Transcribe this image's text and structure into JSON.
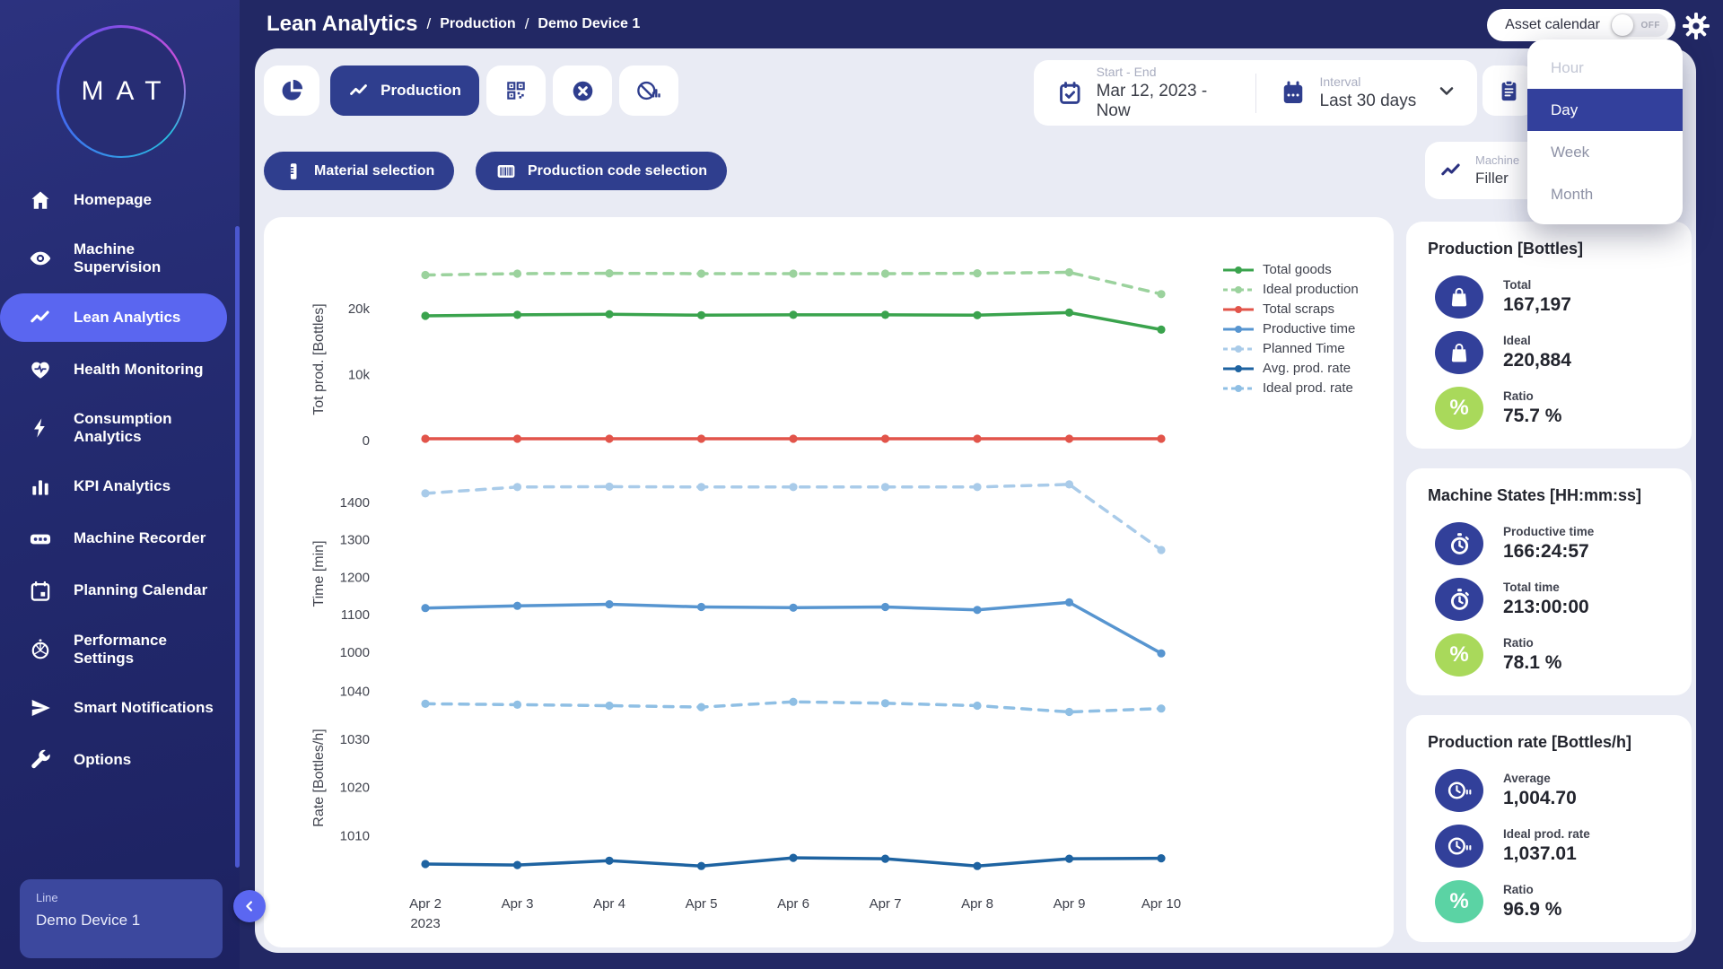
{
  "app": {
    "logo_text": "MAT",
    "breadcrumb": {
      "title": "Lean Analytics",
      "separator": "/",
      "items": [
        "Production",
        "Demo Device 1"
      ]
    }
  },
  "header": {
    "asset_calendar_label": "Asset calendar",
    "toggle_state": "OFF"
  },
  "interval_dropdown": {
    "options": [
      {
        "label": "Hour",
        "selected": false
      },
      {
        "label": "Day",
        "selected": true
      },
      {
        "label": "Week",
        "selected": false
      },
      {
        "label": "Month",
        "selected": false
      }
    ]
  },
  "sidebar": {
    "items": [
      {
        "label": "Homepage",
        "icon": "home",
        "active": false
      },
      {
        "label": "Machine Supervision",
        "icon": "eye",
        "active": false
      },
      {
        "label": "Lean Analytics",
        "icon": "line-chart",
        "active": true
      },
      {
        "label": "Health Monitoring",
        "icon": "heart",
        "active": false
      },
      {
        "label": "Consumption Analytics",
        "icon": "bolt",
        "active": false
      },
      {
        "label": "KPI Analytics",
        "icon": "bar-chart",
        "active": false
      },
      {
        "label": "Machine Recorder",
        "icon": "recorder",
        "active": false
      },
      {
        "label": "Planning Calendar",
        "icon": "calendar",
        "active": false
      },
      {
        "label": "Performance Settings",
        "icon": "gauge",
        "active": false
      },
      {
        "label": "Smart Notifications",
        "icon": "send",
        "active": false
      },
      {
        "label": "Options",
        "icon": "wrench",
        "active": false
      }
    ],
    "device_card": {
      "label": "Line",
      "value": "Demo Device 1"
    }
  },
  "toolbar": {
    "production_label": "Production",
    "material_label": "Material selection",
    "production_code_label": "Production code selection",
    "daterange": {
      "label": "Start - End",
      "value": "Mar 12, 2023 - Now"
    },
    "interval": {
      "label": "Interval",
      "value": "Last 30 days"
    }
  },
  "machine_chip": {
    "label": "Machine",
    "value": "Filler"
  },
  "colors": {
    "accent": "#5a66f0",
    "button_blue": "#2f3e8e",
    "stat_icon_blue": "#32409a",
    "ratio_lime": "#a9d95b",
    "ratio_mint": "#5bd3a4",
    "panel_bg": "#e9ebf4",
    "navy_bg": "#222864"
  },
  "stats_cards": [
    {
      "title": "Production [Bottles]",
      "rows": [
        {
          "icon": "bag",
          "label": "Total",
          "value": "167,197",
          "icon_bg": "#32409a"
        },
        {
          "icon": "bag",
          "label": "Ideal",
          "value": "220,884",
          "icon_bg": "#32409a"
        },
        {
          "icon": "percent",
          "label": "Ratio",
          "value": "75.7 %",
          "icon_bg": "#a9d95b"
        }
      ]
    },
    {
      "title": "Machine States [HH:mm:ss]",
      "rows": [
        {
          "icon": "stopwatch",
          "label": "Productive time",
          "value": "166:24:57",
          "icon_bg": "#32409a"
        },
        {
          "icon": "stopwatch",
          "label": "Total time",
          "value": "213:00:00",
          "icon_bg": "#32409a"
        },
        {
          "icon": "percent",
          "label": "Ratio",
          "value": "78.1 %",
          "icon_bg": "#a9d95b"
        }
      ]
    },
    {
      "title": "Production rate [Bottles/h]",
      "rows": [
        {
          "icon": "clock",
          "label": "Average",
          "value": "1,004.70",
          "icon_bg": "#32409a"
        },
        {
          "icon": "clock",
          "label": "Ideal prod. rate",
          "value": "1,037.01",
          "icon_bg": "#32409a"
        },
        {
          "icon": "percent",
          "label": "Ratio",
          "value": "96.9 %",
          "icon_bg": "#5bd3a4"
        }
      ]
    }
  ],
  "chart_data": {
    "type": "line",
    "x": [
      "Apr 2",
      "Apr 3",
      "Apr 4",
      "Apr 5",
      "Apr 6",
      "Apr 7",
      "Apr 8",
      "Apr 9",
      "Apr 10"
    ],
    "year_label": "2023",
    "grid": false,
    "legend_position": "right-top",
    "subplots": [
      {
        "ylabel": "Tot prod. [Bottles]",
        "ylim": [
          -2200,
          26800
        ],
        "ticks": {
          "values": [
            20000,
            10000,
            0
          ],
          "labels": [
            "20k",
            "10k",
            "0"
          ]
        },
        "series": [
          {
            "name": "Total goods",
            "color": "#3aa34d",
            "dash": false,
            "values": [
              18900,
              19050,
              19150,
              19000,
              19050,
              19050,
              19000,
              19400,
              16800
            ]
          },
          {
            "name": "Ideal production",
            "color": "#9bd29d",
            "dash": true,
            "values": [
              25100,
              25300,
              25350,
              25300,
              25300,
              25300,
              25350,
              25500,
              22200
            ]
          },
          {
            "name": "Total scraps",
            "color": "#e2544a",
            "dash": false,
            "values": [
              250,
              250,
              250,
              250,
              250,
              250,
              250,
              250,
              250
            ]
          }
        ]
      },
      {
        "ylabel": "Time [min]",
        "ylim": [
          964,
          1455
        ],
        "ticks": {
          "values": [
            1400,
            1300,
            1200,
            1100,
            1000
          ],
          "labels": [
            "1400",
            "1300",
            "1200",
            "1100",
            "1000"
          ]
        },
        "series": [
          {
            "name": "Productive time",
            "color": "#5795d0",
            "dash": false,
            "values": [
              1118,
              1124,
              1128,
              1121,
              1119,
              1121,
              1113,
              1133,
              997
            ]
          },
          {
            "name": "Planned Time",
            "color": "#a9cbe9",
            "dash": true,
            "values": [
              1424,
              1441,
              1442,
              1441,
              1441,
              1441,
              1441,
              1448,
              1273
            ]
          }
        ]
      },
      {
        "ylabel": "Rate [Bottles/h]",
        "ylim": [
          1001.5,
          1042.5
        ],
        "ticks": {
          "values": [
            1040,
            1030,
            1020,
            1010
          ],
          "labels": [
            "1040",
            "1030",
            "1020",
            "1010"
          ]
        },
        "series": [
          {
            "name": "Avg. prod. rate",
            "color": "#1e63a1",
            "dash": false,
            "values": [
              1004.1,
              1003.9,
              1004.8,
              1003.7,
              1005.4,
              1005.2,
              1003.7,
              1005.2,
              1005.3
            ]
          },
          {
            "name": "Ideal prod. rate",
            "color": "#8fbfe4",
            "dash": true,
            "values": [
              1037.4,
              1037.2,
              1037.0,
              1036.7,
              1037.8,
              1037.5,
              1037.0,
              1035.7,
              1036.4
            ]
          }
        ]
      }
    ]
  }
}
